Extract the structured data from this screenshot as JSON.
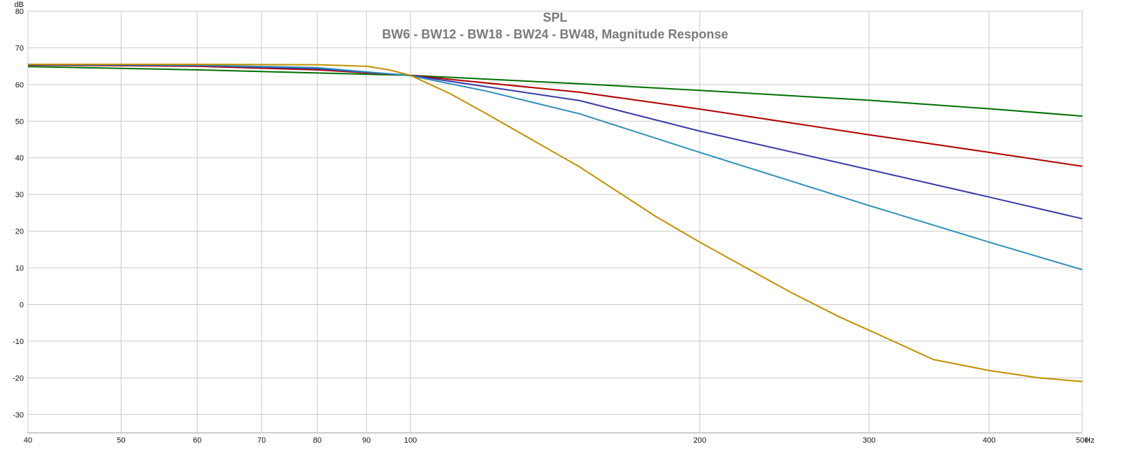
{
  "chart_data": {
    "type": "line",
    "title": "SPL",
    "subtitle": "BW6 - BW12 - BW18 - BW24 - BW48, Magnitude Response",
    "ylabel": "dB",
    "xunit": "Hz",
    "xscale": "log",
    "xlim": [
      40,
      500
    ],
    "ylim": [
      -35,
      80
    ],
    "xticks": [
      40,
      50,
      60,
      70,
      80,
      90,
      100,
      200,
      300,
      400,
      500
    ],
    "xtick_labels": [
      "40",
      "50",
      "60",
      "70",
      "80",
      "90",
      "100",
      "200",
      "300",
      "400",
      "500"
    ],
    "yticks": [
      80,
      70,
      60,
      50,
      40,
      30,
      20,
      10,
      0,
      -10,
      -20,
      -30
    ],
    "ytick_labels": [
      "80",
      "70",
      "60",
      "50",
      "40",
      "30",
      "20",
      "10",
      "0",
      "-10",
      "-20",
      "-30"
    ],
    "grid": true,
    "legend": "none",
    "series": [
      {
        "color": "#007000",
        "x": [
          40,
          60,
          100,
          150,
          200,
          300,
          400,
          500
        ],
        "y": [
          64.9,
          64.0,
          62.5,
          60.2,
          58.4,
          55.7,
          53.4,
          51.4
        ]
      },
      {
        "color": "#b00000",
        "x": [
          40,
          60,
          80,
          100,
          150,
          200,
          300,
          400,
          500
        ],
        "y": [
          65.3,
          65.0,
          64.0,
          62.5,
          57.9,
          53.3,
          46.3,
          41.5,
          37.7
        ]
      },
      {
        "color": "#3a3aa8",
        "x": [
          40,
          60,
          80,
          100,
          150,
          200,
          300,
          400,
          500
        ],
        "y": [
          65.4,
          65.2,
          64.3,
          62.5,
          55.6,
          47.3,
          36.8,
          29.3,
          23.4
        ]
      },
      {
        "color": "#2f8fb8",
        "x": [
          40,
          60,
          80,
          100,
          120,
          150,
          200,
          250,
          300,
          400,
          500
        ],
        "y": [
          65.5,
          65.3,
          64.6,
          62.4,
          58.2,
          52.0,
          41.5,
          33.5,
          27.0,
          17.0,
          9.5
        ]
      },
      {
        "color": "#c09000",
        "x": [
          40,
          60,
          80,
          90,
          95,
          100,
          110,
          120,
          150,
          180,
          200,
          220,
          250,
          280,
          300,
          350,
          400,
          450,
          500
        ],
        "y": [
          65.5,
          65.5,
          65.4,
          65.0,
          64.0,
          62.5,
          57.5,
          52.0,
          37.5,
          24.0,
          17.0,
          11.0,
          3.0,
          -3.5,
          -7.0,
          -15.0,
          -18.0,
          -20.0,
          -21.0
        ]
      }
    ]
  }
}
